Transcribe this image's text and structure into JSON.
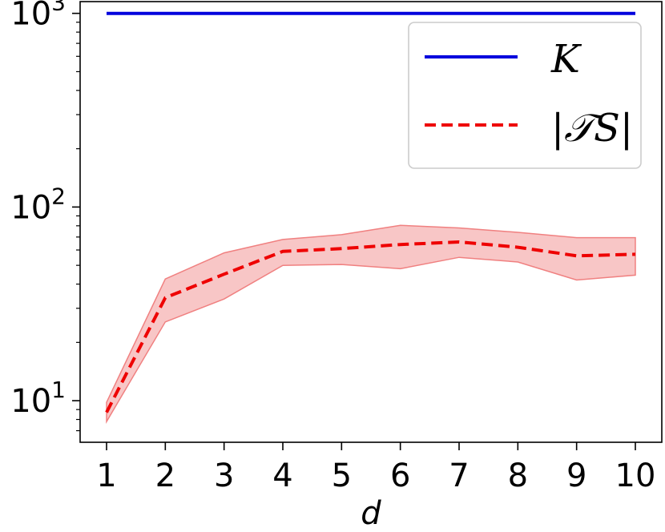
{
  "chart_data": {
    "type": "line",
    "title": "",
    "xlabel": "d",
    "ylabel": "",
    "yscale": "log",
    "xlim": [
      0.55,
      10.45
    ],
    "ylim": [
      6.1,
      1150
    ],
    "x": [
      1,
      2,
      3,
      4,
      5,
      6,
      7,
      8,
      9,
      10
    ],
    "x_ticks": [
      "1",
      "2",
      "3",
      "4",
      "5",
      "6",
      "7",
      "8",
      "9",
      "10"
    ],
    "y_ticks": [
      {
        "value": 10,
        "base": "10",
        "exp": "1"
      },
      {
        "value": 100,
        "base": "10",
        "exp": "2"
      },
      {
        "value": 1000,
        "base": "10",
        "exp": "3"
      }
    ],
    "grid": false,
    "legend_position": "top-right",
    "series": [
      {
        "name": "K",
        "style": "solid",
        "color": "#0000dd",
        "values": [
          1000,
          1000,
          1000,
          1000,
          1000,
          1000,
          1000,
          1000,
          1000,
          1000
        ]
      },
      {
        "name": "|𝒯S|",
        "style": "dashed",
        "color": "#ee0000",
        "values": [
          8.7,
          34,
          45,
          59,
          61,
          64,
          66,
          62,
          56,
          57
        ],
        "band_lower": [
          7.8,
          25.5,
          33.5,
          50,
          50.5,
          48,
          55,
          52,
          42,
          44.5
        ],
        "band_upper": [
          9.8,
          42.5,
          58,
          68,
          72,
          80.5,
          78,
          74,
          69.5,
          69.5
        ],
        "band_color": "#f08080"
      }
    ]
  }
}
